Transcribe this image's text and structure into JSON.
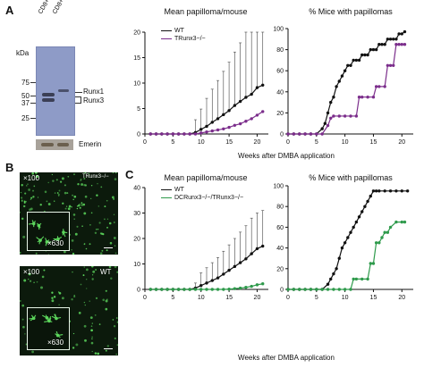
{
  "panels": {
    "A": "A",
    "B": "B",
    "C": "C"
  },
  "blot": {
    "lane1": "CD8+ WT",
    "lane2": "CD8+ Lck-cre",
    "kda_label": "kDa",
    "markers": [
      "75",
      "50",
      "37",
      "25"
    ],
    "band_labels": [
      "Runx1",
      "Runx3"
    ],
    "emerin": "Emerin"
  },
  "micro": {
    "top_mag": "×100",
    "top_inset_mag": "×630",
    "top_genotype": "TRunx3−/−",
    "bottom_mag": "×100",
    "bottom_inset_mag": "×630",
    "bottom_genotype": "WT"
  },
  "shared_xlabel_top": "Weeks after DMBA application",
  "shared_xlabel_bottom": "Weeks after DMBA application",
  "colors": {
    "wt": "#111111",
    "ko_t": "#7b2d8b",
    "ko_dc": "#2e9a4b",
    "micro_green": "#5cd65c"
  },
  "chart_data": [
    {
      "id": "A1",
      "type": "line",
      "title": "Mean papilloma/mouse",
      "xlim": [
        0,
        22
      ],
      "ylim": [
        0,
        20
      ],
      "xticks": [
        0,
        5,
        10,
        15,
        20
      ],
      "yticks": [
        0,
        5,
        10,
        15,
        20
      ],
      "legend": "top-left",
      "series": [
        {
          "name": "WT",
          "color": "#111111",
          "err": true,
          "x": [
            1,
            2,
            3,
            4,
            5,
            6,
            7,
            8,
            9,
            10,
            11,
            12,
            13,
            14,
            15,
            16,
            17,
            18,
            19,
            20,
            21
          ],
          "y": [
            0,
            0,
            0,
            0,
            0,
            0,
            0,
            0,
            0.3,
            0.9,
            1.5,
            2.3,
            3.0,
            3.8,
            4.6,
            5.6,
            6.4,
            7.2,
            7.8,
            9.1,
            9.6
          ],
          "e": [
            0,
            0,
            0,
            0,
            0,
            0,
            0,
            0,
            2.5,
            4,
            5.5,
            6.5,
            7.5,
            8.5,
            9.5,
            10.5,
            11.5,
            13,
            14,
            15,
            15
          ]
        },
        {
          "name": "TRunx3−/−",
          "color": "#7b2d8b",
          "err": true,
          "x": [
            1,
            2,
            3,
            4,
            5,
            6,
            7,
            8,
            9,
            10,
            11,
            12,
            13,
            14,
            15,
            16,
            17,
            18,
            19,
            20,
            21
          ],
          "y": [
            0,
            0,
            0,
            0,
            0,
            0,
            0,
            0,
            0,
            0.2,
            0.4,
            0.6,
            0.8,
            1.0,
            1.3,
            1.7,
            2.0,
            2.5,
            3.0,
            3.7,
            4.4
          ],
          "e": [
            0,
            0,
            0,
            0,
            0,
            0,
            0,
            0,
            0,
            0,
            0,
            0,
            0,
            0,
            0,
            0,
            0,
            0,
            0,
            0,
            0
          ]
        }
      ]
    },
    {
      "id": "A2",
      "type": "line",
      "title": "% Mice with papillomas",
      "xlim": [
        0,
        22
      ],
      "ylim": [
        0,
        100
      ],
      "xticks": [
        0,
        5,
        10,
        15,
        20
      ],
      "yticks": [
        0,
        20,
        40,
        60,
        80,
        100
      ],
      "series": [
        {
          "name": "WT",
          "color": "#111111",
          "x": [
            0,
            1,
            2,
            3,
            4,
            5,
            6,
            6.5,
            7,
            7.5,
            8,
            8.5,
            9,
            9.5,
            10,
            10.5,
            11,
            11.5,
            12,
            12.5,
            13,
            13.5,
            14,
            14.5,
            15,
            15.5,
            16,
            16.5,
            17,
            17.5,
            18,
            18.5,
            19,
            19.5,
            20,
            20.5
          ],
          "y": [
            0,
            0,
            0,
            0,
            0,
            0,
            5,
            10,
            20,
            30,
            35,
            45,
            50,
            55,
            60,
            65,
            65,
            70,
            70,
            70,
            75,
            75,
            75,
            80,
            80,
            80,
            85,
            85,
            85,
            90,
            90,
            90,
            90,
            95,
            95,
            97
          ]
        },
        {
          "name": "TRunx3−/−",
          "color": "#7b2d8b",
          "x": [
            0,
            1,
            2,
            3,
            4,
            5,
            6,
            7,
            7.5,
            8,
            9,
            10,
            11,
            12,
            12.5,
            13,
            14,
            15,
            15.5,
            16,
            17,
            17.5,
            18,
            18.5,
            19,
            19.5,
            20,
            20.5
          ],
          "y": [
            0,
            0,
            0,
            0,
            0,
            0,
            0,
            8,
            15,
            17,
            17,
            17,
            17,
            17,
            35,
            35,
            35,
            35,
            45,
            45,
            45,
            65,
            65,
            65,
            85,
            85,
            85,
            85
          ]
        }
      ]
    },
    {
      "id": "C1",
      "type": "line",
      "title": "Mean papilloma/mouse",
      "xlim": [
        0,
        22
      ],
      "ylim": [
        0,
        40
      ],
      "xticks": [
        0,
        5,
        10,
        15,
        20
      ],
      "yticks": [
        0,
        10,
        20,
        30,
        40
      ],
      "series": [
        {
          "name": "WT",
          "color": "#111111",
          "err": true,
          "x": [
            1,
            2,
            3,
            4,
            5,
            6,
            7,
            8,
            9,
            10,
            11,
            12,
            13,
            14,
            15,
            16,
            17,
            18,
            19,
            20,
            21
          ],
          "y": [
            0,
            0,
            0,
            0,
            0,
            0,
            0,
            0,
            0.5,
            1.5,
            2.5,
            3.5,
            4.5,
            6,
            7.5,
            9,
            10.5,
            12,
            14,
            16,
            17
          ],
          "e": [
            0,
            0,
            0,
            0,
            0,
            0,
            0,
            0,
            2,
            5,
            6,
            7,
            8,
            9,
            10,
            11,
            12,
            13,
            14,
            14,
            14
          ]
        },
        {
          "name": "DCRunx3−/−/TRunx3−/−",
          "color": "#2e9a4b",
          "err": true,
          "x": [
            1,
            2,
            3,
            4,
            5,
            6,
            7,
            8,
            9,
            10,
            11,
            12,
            13,
            14,
            15,
            16,
            17,
            18,
            19,
            20,
            21
          ],
          "y": [
            0,
            0,
            0,
            0,
            0,
            0,
            0,
            0,
            0,
            0,
            0,
            0,
            0,
            0,
            0.1,
            0.3,
            0.5,
            0.8,
            1.2,
            1.8,
            2.2
          ],
          "e": [
            0,
            0,
            0,
            0,
            0,
            0,
            0,
            0,
            0,
            0,
            0,
            0,
            0,
            0,
            0,
            0,
            0,
            0,
            0,
            0,
            0
          ]
        }
      ]
    },
    {
      "id": "C2",
      "type": "line",
      "title": "% Mice with papillomas",
      "xlim": [
        0,
        22
      ],
      "ylim": [
        0,
        100
      ],
      "xticks": [
        0,
        5,
        10,
        15,
        20
      ],
      "yticks": [
        0,
        20,
        40,
        60,
        80,
        100
      ],
      "series": [
        {
          "name": "WT",
          "color": "#111111",
          "x": [
            0,
            1,
            2,
            3,
            4,
            5,
            6,
            7,
            7.5,
            8,
            8.5,
            9,
            9.5,
            10,
            10.5,
            11,
            11.5,
            12,
            12.5,
            13,
            13.5,
            14,
            14.5,
            15,
            15.5,
            16,
            17,
            18,
            19,
            20,
            21
          ],
          "y": [
            0,
            0,
            0,
            0,
            0,
            0,
            0,
            5,
            10,
            15,
            20,
            30,
            40,
            45,
            50,
            55,
            60,
            65,
            70,
            75,
            80,
            85,
            90,
            95,
            95,
            95,
            95,
            95,
            95,
            95,
            95
          ]
        },
        {
          "name": "DCRunx3−/−/TRunx3−/−",
          "color": "#2e9a4b",
          "x": [
            0,
            1,
            2,
            3,
            4,
            5,
            6,
            7,
            8,
            9,
            10,
            11,
            11.5,
            12,
            13,
            14,
            14.5,
            15,
            15.5,
            16,
            16.5,
            17,
            17.5,
            18,
            19,
            20,
            20.5
          ],
          "y": [
            0,
            0,
            0,
            0,
            0,
            0,
            0,
            0,
            0,
            0,
            0,
            0,
            10,
            10,
            10,
            10,
            25,
            25,
            45,
            45,
            50,
            55,
            55,
            60,
            65,
            65,
            65
          ]
        }
      ]
    }
  ],
  "legendA": {
    "wt": "WT",
    "ko": "TRunx3−/−"
  },
  "legendC": {
    "wt": "WT",
    "ko": "DCRunx3−/−/TRunx3−/−"
  }
}
